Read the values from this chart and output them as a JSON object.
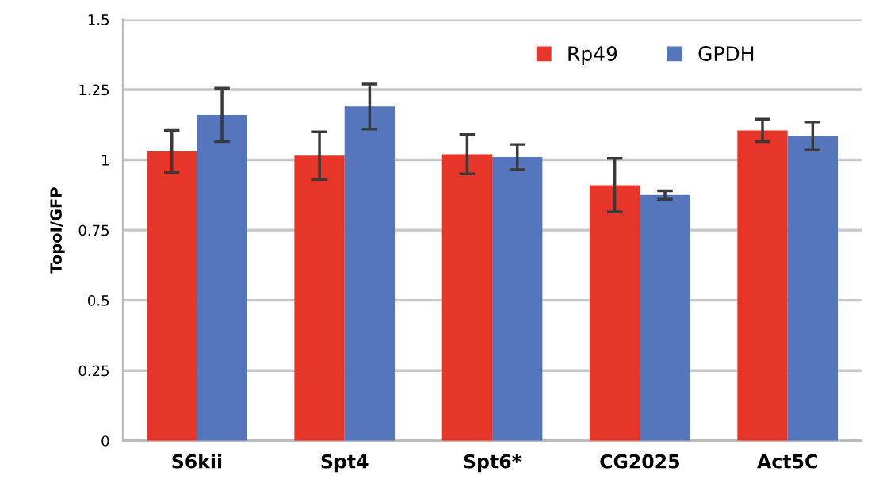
{
  "chart_data": {
    "type": "bar",
    "ylabel": "TopoI/GFP",
    "categories": [
      "S6kii",
      "Spt4",
      "Spt6*",
      "CG2025",
      "Act5C"
    ],
    "series": [
      {
        "name": "Rp49",
        "color": "#e8352a",
        "values": [
          1.03,
          1.015,
          1.02,
          0.91,
          1.105
        ],
        "errors": [
          0.075,
          0.085,
          0.07,
          0.095,
          0.04
        ]
      },
      {
        "name": "GPDH",
        "color": "#5576bd",
        "values": [
          1.16,
          1.19,
          1.01,
          0.875,
          1.085
        ],
        "errors": [
          0.095,
          0.08,
          0.045,
          0.015,
          0.05
        ]
      }
    ],
    "ylim": [
      0,
      1.5
    ],
    "yticks": [
      0,
      0.25,
      0.5,
      0.75,
      1,
      1.25,
      1.5
    ],
    "grid": "y",
    "legend": "top right"
  }
}
